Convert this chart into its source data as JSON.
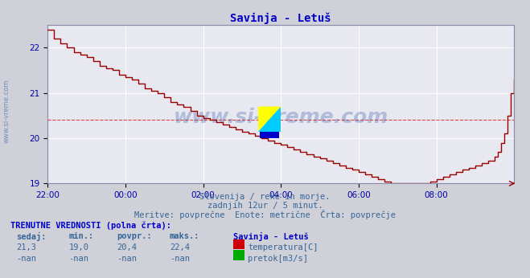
{
  "title": "Savinja - Letuš",
  "title_color": "#0000cc",
  "bg_color": "#d0d0d8",
  "plot_bg_color": "#e8e8f0",
  "grid_color": "#ffffff",
  "tick_color": "#0000aa",
  "subtitle_lines": [
    "Slovenija / reke in morje.",
    "zadnjih 12ur / 5 minut.",
    "Meritve: povprečne  Enote: metrične  Črta: povprečje"
  ],
  "text_color": "#336699",
  "xlim": [
    0,
    144
  ],
  "ylim": [
    19.0,
    22.5
  ],
  "yticks": [
    19,
    20,
    21,
    22
  ],
  "xtick_labels": [
    "22:00",
    "00:00",
    "02:00",
    "04:00",
    "06:00",
    "08:00"
  ],
  "xtick_positions": [
    0,
    24,
    48,
    72,
    96,
    120
  ],
  "avg_line_y": 20.4,
  "avg_line_color": "#dd4444",
  "temp_line_color": "#990000",
  "watermark_text": "www.si-vreme.com",
  "watermark_color": "#3355aa",
  "side_label": "www.si-vreme.com",
  "side_label_color": "#6688bb",
  "legend_station": "Savinja - Letuš",
  "legend_temp_label": "temperatura[C]",
  "legend_temp_color": "#cc0000",
  "legend_flow_label": "pretok[m3/s]",
  "legend_flow_color": "#00aa00",
  "table_title": "TRENUTNE VREDNOSTI (polna črta):",
  "table_headers": [
    "sedaj:",
    "min.:",
    "povpr.:",
    "maks.:",
    "Savinja - Letuš"
  ],
  "table_values_temp": [
    "21,3",
    "19,0",
    "20,4",
    "22,4"
  ],
  "table_values_flow": [
    "-nan",
    "-nan",
    "-nan",
    "-nan"
  ],
  "temp_data_x": [
    0,
    2,
    4,
    6,
    8,
    10,
    12,
    14,
    16,
    18,
    20,
    22,
    24,
    26,
    28,
    30,
    32,
    34,
    36,
    38,
    40,
    42,
    44,
    46,
    48,
    50,
    52,
    54,
    56,
    58,
    60,
    62,
    64,
    66,
    68,
    70,
    72,
    74,
    76,
    78,
    80,
    82,
    84,
    86,
    88,
    90,
    92,
    94,
    96,
    98,
    100,
    102,
    104,
    106,
    108,
    110,
    112,
    114,
    116,
    118,
    120,
    122,
    124,
    126,
    128,
    130,
    132,
    134,
    136,
    138,
    139,
    140,
    141,
    142,
    143,
    144
  ],
  "temp_data_y": [
    22.4,
    22.2,
    22.1,
    22.0,
    21.9,
    21.85,
    21.8,
    21.7,
    21.6,
    21.55,
    21.5,
    21.4,
    21.35,
    21.3,
    21.2,
    21.1,
    21.05,
    21.0,
    20.9,
    20.8,
    20.75,
    20.7,
    20.6,
    20.5,
    20.45,
    20.4,
    20.35,
    20.3,
    20.25,
    20.2,
    20.15,
    20.1,
    20.05,
    20.0,
    19.95,
    19.9,
    19.85,
    19.8,
    19.75,
    19.7,
    19.65,
    19.6,
    19.55,
    19.5,
    19.45,
    19.4,
    19.35,
    19.3,
    19.25,
    19.2,
    19.15,
    19.1,
    19.05,
    19.0,
    19.0,
    19.0,
    19.0,
    19.0,
    19.0,
    19.05,
    19.1,
    19.15,
    19.2,
    19.25,
    19.3,
    19.35,
    19.4,
    19.45,
    19.5,
    19.6,
    19.7,
    19.9,
    20.1,
    20.5,
    21.0,
    21.3
  ]
}
